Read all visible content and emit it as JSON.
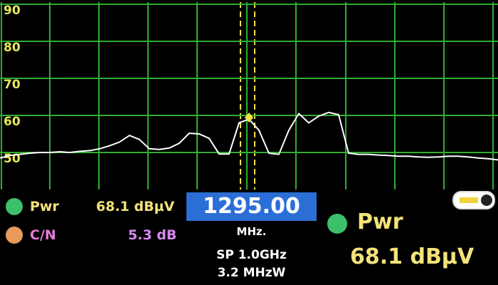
{
  "chart_data": {
    "type": "line",
    "color": "#ffffff",
    "grid": true,
    "ylim": [
      40,
      90
    ],
    "yticks": [
      50,
      60,
      70,
      80,
      90
    ],
    "values": [
      48.5,
      49.2,
      49.5,
      49.8,
      50,
      50,
      50.2,
      50,
      50.3,
      50.5,
      51,
      51.8,
      52.8,
      54.6,
      53.5,
      51,
      50.8,
      51.2,
      52.5,
      55.2,
      55,
      53.8,
      49.6,
      49.6,
      58,
      59,
      56,
      49.8,
      49.5,
      56,
      60.5,
      58,
      59.8,
      60.8,
      60.2,
      49.8,
      49.5,
      49.5,
      49.3,
      49.2,
      49,
      49,
      48.8,
      48.7,
      48.8,
      49,
      49,
      48.8,
      48.5,
      48.3,
      48
    ]
  },
  "readouts": {
    "pwr_label": "Pwr",
    "pwr_value": "68.1 dBµV",
    "cn_label": "C/N",
    "cn_value": "5.3 dB",
    "frequency": "1295.00",
    "frequency_unit": "MHz.",
    "span": "SP 1.0GHz",
    "bandwidth": "3.2 MHzW"
  }
}
